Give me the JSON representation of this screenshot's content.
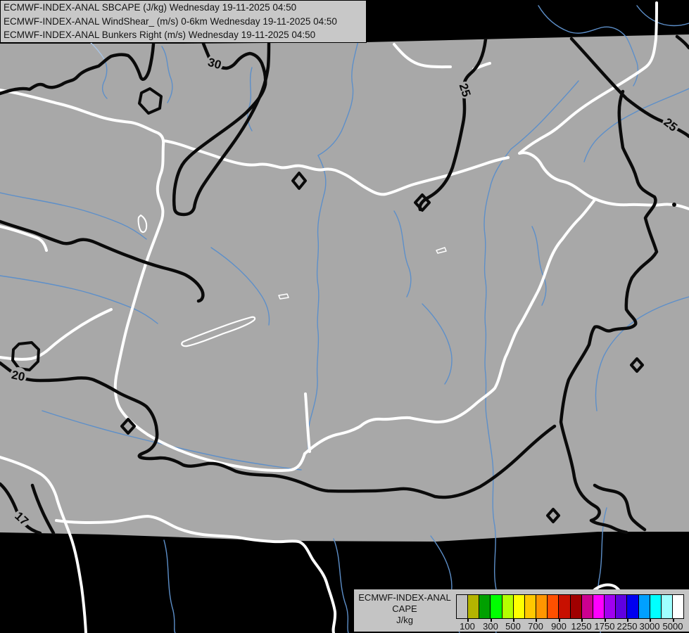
{
  "title_block": {
    "lines": [
      "ECMWF-INDEX-ANAL SBCAPE (J/kg) Wednesday 19-11-2025 04:50",
      "ECMWF-INDEX-ANAL WindShear_ (m/s) 0-6km Wednesday 19-11-2025 04:50",
      "ECMWF-INDEX-ANAL Bunkers Right (m/s) Wednesday 19-11-2025 04:50"
    ]
  },
  "legend": {
    "title_lines": [
      "ECMWF-INDEX-ANAL",
      "CAPE",
      "J/kg"
    ],
    "colors": [
      "#c0c0c0",
      "#b4b400",
      "#00a000",
      "#00ff00",
      "#b4ff00",
      "#ffff00",
      "#ffc800",
      "#ff9600",
      "#ff5000",
      "#c81000",
      "#a00000",
      "#cc0090",
      "#ff00ff",
      "#a000f0",
      "#5f00e0",
      "#0000f0",
      "#00a0ff",
      "#00ffff",
      "#a0ffff",
      "#ffffff"
    ],
    "tick_values": [
      "100",
      "300",
      "500",
      "700",
      "900",
      "1250",
      "1750",
      "2250",
      "3000",
      "5000"
    ]
  },
  "map": {
    "colors": {
      "background": "#000000",
      "land": "#a8a8a8",
      "river": "#5d8fc9",
      "river_light": "#a8c4e4",
      "border": "#ffffff",
      "contour": "#0a0a0a"
    },
    "contour_labels": [
      {
        "text": "30"
      },
      {
        "text": "25"
      },
      {
        "text": "25"
      },
      {
        "text": "20"
      },
      {
        "text": "17"
      }
    ]
  }
}
